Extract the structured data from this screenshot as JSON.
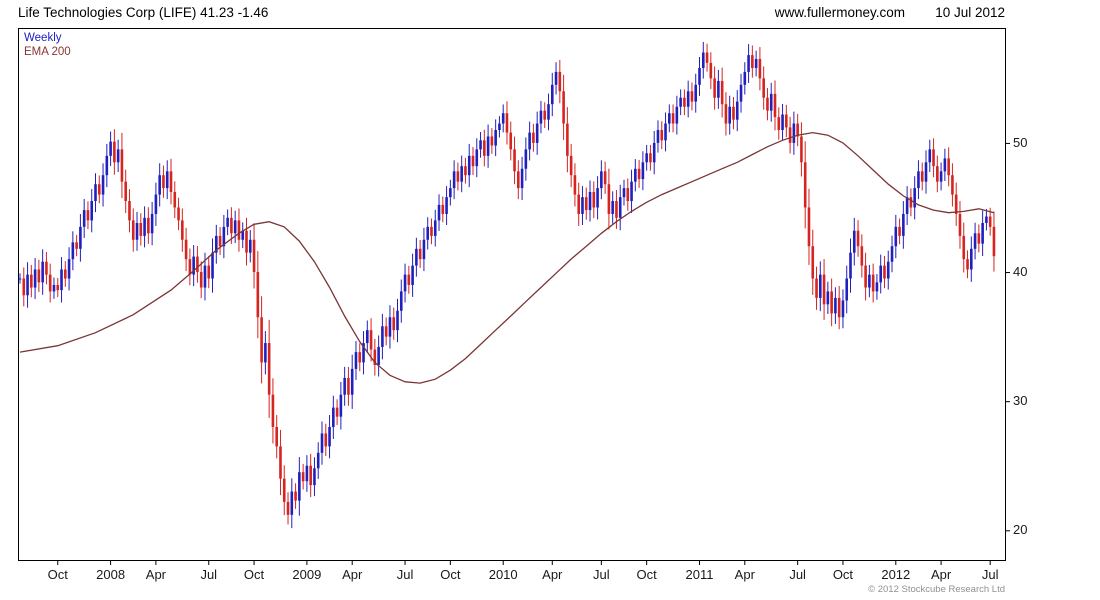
{
  "header": {
    "title": "Life Technologies Corp (LIFE) 41.23 -1.46",
    "website": "www.fullermoney.com",
    "date": "10 Jul 2012"
  },
  "legend": {
    "weekly": "Weekly",
    "ema": "EMA 200"
  },
  "footer": {
    "copyright": "© 2012 Stockcube Research Ltd"
  },
  "colors": {
    "up": "#2020bf",
    "down": "#d62420",
    "ema": "#7b3535",
    "axis": "#000000",
    "label": "#1a1a1a",
    "legend_weekly": "#2020bf",
    "legend_ema": "#8b3535",
    "copyright": "#909090"
  },
  "chart_data": {
    "type": "candlestick",
    "title": "Life Technologies Corp (LIFE) 41.23 -1.46",
    "symbol": "LIFE",
    "interval": "Weekly",
    "overlay": "EMA 200",
    "last_close": 41.23,
    "change": -1.46,
    "y_ticks": [
      20,
      30,
      40,
      50
    ],
    "y_domain": [
      17.7,
      58.9
    ],
    "x_ticks": [
      {
        "label": "Oct",
        "week": 10
      },
      {
        "label": "2008",
        "week": 24
      },
      {
        "label": "Apr",
        "week": 36
      },
      {
        "label": "Jul",
        "week": 50
      },
      {
        "label": "Oct",
        "week": 62
      },
      {
        "label": "2009",
        "week": 76
      },
      {
        "label": "Apr",
        "week": 88
      },
      {
        "label": "Jul",
        "week": 102
      },
      {
        "label": "Oct",
        "week": 114
      },
      {
        "label": "2010",
        "week": 128
      },
      {
        "label": "Apr",
        "week": 141
      },
      {
        "label": "Jul",
        "week": 154
      },
      {
        "label": "Oct",
        "week": 166
      },
      {
        "label": "2011",
        "week": 180
      },
      {
        "label": "Apr",
        "week": 192
      },
      {
        "label": "Jul",
        "week": 206
      },
      {
        "label": "Oct",
        "week": 218
      },
      {
        "label": "2012",
        "week": 232
      },
      {
        "label": "Apr",
        "week": 244
      },
      {
        "label": "Jul",
        "week": 257
      }
    ],
    "weekly_closes": [
      39.5,
      38.2,
      39.8,
      38.8,
      40.2,
      39.2,
      40.8,
      39.8,
      38.5,
      39.0,
      38.6,
      40.2,
      39.5,
      41.0,
      42.3,
      41.8,
      43.5,
      44.8,
      44.0,
      45.5,
      46.8,
      46.0,
      47.5,
      49.0,
      50.1,
      48.5,
      49.5,
      47.0,
      45.5,
      44.0,
      42.5,
      43.8,
      42.8,
      44.2,
      43.0,
      44.5,
      46.0,
      47.5,
      46.5,
      47.8,
      46.2,
      45.0,
      44.0,
      42.5,
      41.0,
      39.8,
      41.2,
      40.0,
      38.8,
      40.5,
      39.5,
      41.5,
      42.8,
      42.0,
      43.5,
      44.2,
      43.0,
      44.0,
      42.5,
      43.2,
      41.5,
      42.5,
      40.0,
      36.5,
      33.0,
      34.5,
      30.5,
      28.0,
      26.5,
      24.0,
      22.2,
      21.2,
      23.0,
      22.3,
      24.5,
      23.8,
      25.0,
      23.5,
      24.8,
      26.0,
      27.5,
      26.5,
      28.0,
      29.5,
      28.8,
      30.5,
      31.8,
      30.5,
      32.5,
      33.8,
      33.0,
      34.5,
      35.5,
      34.0,
      32.8,
      34.2,
      35.8,
      35.0,
      36.5,
      35.5,
      37.0,
      38.5,
      39.8,
      39.0,
      40.5,
      41.8,
      41.0,
      42.5,
      43.5,
      42.8,
      44.0,
      45.2,
      44.5,
      45.8,
      46.5,
      47.8,
      47.0,
      48.2,
      47.5,
      49.0,
      48.2,
      49.5,
      50.2,
      49.0,
      50.5,
      49.8,
      51.0,
      51.5,
      52.3,
      50.8,
      49.5,
      47.8,
      46.5,
      48.0,
      49.5,
      50.8,
      50.0,
      51.5,
      52.5,
      51.8,
      53.0,
      54.5,
      55.5,
      54.0,
      51.5,
      49.0,
      47.5,
      46.0,
      44.5,
      45.8,
      44.8,
      46.2,
      45.0,
      46.5,
      47.8,
      46.8,
      44.5,
      45.5,
      44.2,
      45.8,
      46.5,
      45.5,
      47.0,
      48.0,
      47.2,
      48.5,
      49.2,
      48.5,
      50.0,
      51.0,
      50.2,
      51.5,
      52.3,
      51.5,
      52.8,
      53.5,
      52.8,
      54.0,
      53.2,
      54.5,
      55.8,
      57.0,
      56.2,
      55.0,
      53.5,
      54.8,
      53.0,
      51.5,
      52.8,
      51.8,
      53.2,
      54.5,
      55.5,
      56.8,
      55.8,
      56.5,
      55.0,
      53.5,
      52.5,
      53.8,
      52.0,
      51.0,
      52.2,
      51.2,
      50.0,
      51.5,
      50.5,
      48.5,
      45.0,
      42.0,
      39.5,
      38.0,
      39.8,
      37.5,
      38.5,
      36.8,
      38.0,
      36.5,
      37.8,
      39.5,
      41.5,
      43.2,
      42.0,
      40.5,
      38.8,
      39.8,
      38.5,
      39.2,
      40.5,
      39.5,
      40.8,
      42.0,
      43.5,
      42.8,
      44.5,
      45.8,
      45.0,
      46.5,
      47.8,
      47.0,
      48.5,
      49.5,
      48.2,
      47.0,
      47.8,
      48.8,
      47.5,
      46.0,
      44.5,
      42.8,
      41.0,
      40.2,
      41.8,
      43.0,
      42.2,
      43.8,
      44.3,
      43.5,
      41.23
    ],
    "ema_anchors": [
      [
        0,
        33.8
      ],
      [
        10,
        34.3
      ],
      [
        20,
        35.3
      ],
      [
        30,
        36.7
      ],
      [
        40,
        38.6
      ],
      [
        46,
        40.1
      ],
      [
        52,
        41.7
      ],
      [
        58,
        43.0
      ],
      [
        62,
        43.7
      ],
      [
        66,
        43.9
      ],
      [
        70,
        43.5
      ],
      [
        74,
        42.4
      ],
      [
        78,
        40.8
      ],
      [
        82,
        38.8
      ],
      [
        86,
        36.6
      ],
      [
        90,
        34.6
      ],
      [
        94,
        33.0
      ],
      [
        98,
        32.0
      ],
      [
        102,
        31.5
      ],
      [
        106,
        31.4
      ],
      [
        110,
        31.7
      ],
      [
        114,
        32.4
      ],
      [
        118,
        33.3
      ],
      [
        122,
        34.4
      ],
      [
        126,
        35.5
      ],
      [
        130,
        36.6
      ],
      [
        134,
        37.7
      ],
      [
        138,
        38.8
      ],
      [
        142,
        39.9
      ],
      [
        146,
        41.0
      ],
      [
        150,
        42.0
      ],
      [
        154,
        43.0
      ],
      [
        158,
        43.9
      ],
      [
        162,
        44.7
      ],
      [
        166,
        45.4
      ],
      [
        170,
        46.0
      ],
      [
        174,
        46.5
      ],
      [
        178,
        47.0
      ],
      [
        182,
        47.5
      ],
      [
        186,
        48.0
      ],
      [
        190,
        48.5
      ],
      [
        194,
        49.1
      ],
      [
        198,
        49.7
      ],
      [
        202,
        50.2
      ],
      [
        206,
        50.6
      ],
      [
        210,
        50.8
      ],
      [
        214,
        50.6
      ],
      [
        218,
        50.0
      ],
      [
        222,
        49.0
      ],
      [
        226,
        47.9
      ],
      [
        230,
        46.8
      ],
      [
        234,
        45.9
      ],
      [
        238,
        45.2
      ],
      [
        242,
        44.8
      ],
      [
        246,
        44.6
      ],
      [
        250,
        44.7
      ],
      [
        254,
        44.9
      ],
      [
        258,
        44.6
      ]
    ]
  }
}
